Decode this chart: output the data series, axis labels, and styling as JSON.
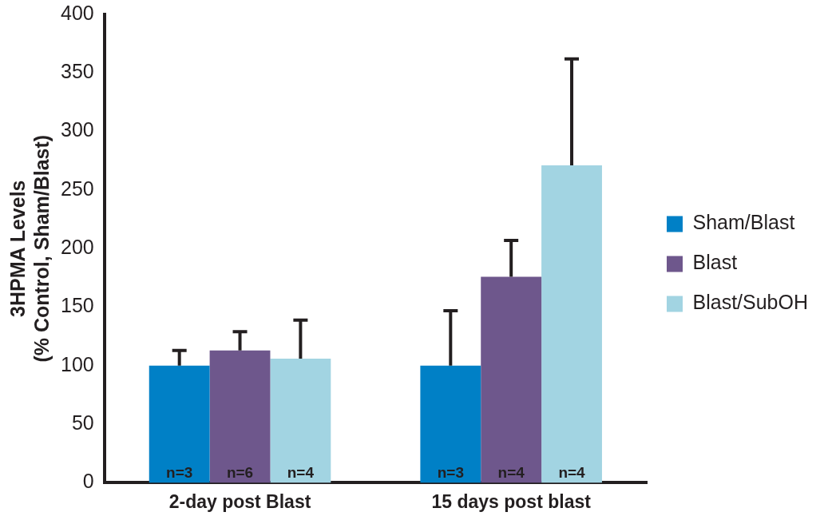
{
  "chart_data": {
    "type": "bar",
    "ylabel": "3HPMA Levels\n(% Control, Sham/Blast)",
    "categories": [
      "2-day post Blast",
      "15 days post blast"
    ],
    "series": [
      {
        "name": "Sham/Blast",
        "color": "#0080c6",
        "values": [
          100,
          100
        ],
        "errors": [
          13,
          47
        ]
      },
      {
        "name": "Blast",
        "color": "#6e578c",
        "values": [
          113,
          176
        ],
        "errors": [
          16,
          31
        ]
      },
      {
        "name": "Blast/SubOH",
        "color": "#a2d4e2",
        "values": [
          106,
          271
        ],
        "errors": [
          33,
          91
        ]
      }
    ],
    "annotations": [
      "n=3",
      "n=6",
      "n=4",
      "n=3",
      "n=4",
      "n=4"
    ],
    "ylim": [
      0,
      400
    ],
    "yticks": [
      0,
      50,
      100,
      150,
      200,
      250,
      300,
      350,
      400
    ],
    "grid": false,
    "legend": "right"
  }
}
